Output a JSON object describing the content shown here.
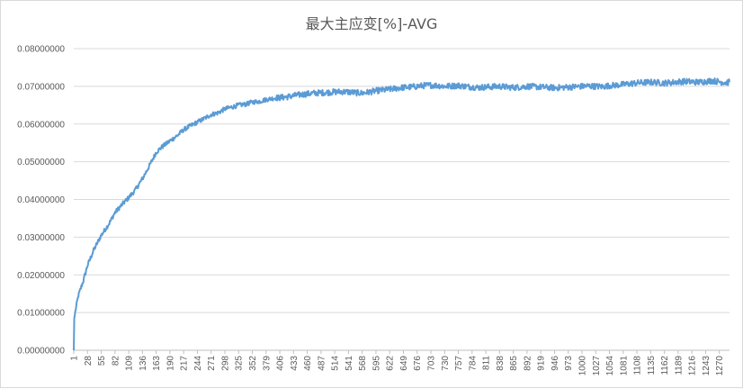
{
  "chart_data": {
    "type": "line",
    "title": "最大主应变[%]-AVG",
    "xlabel": "",
    "ylabel": "",
    "ylim": [
      0,
      0.08
    ],
    "grid": true,
    "legend": "none",
    "y_ticks": [
      "0.00000000",
      "0.01000000",
      "0.02000000",
      "0.03000000",
      "0.04000000",
      "0.05000000",
      "0.06000000",
      "0.07000000",
      "0.08000000"
    ],
    "x_ticks": [
      "1",
      "28",
      "55",
      "82",
      "109",
      "136",
      "163",
      "190",
      "217",
      "244",
      "271",
      "298",
      "325",
      "352",
      "379",
      "406",
      "433",
      "460",
      "487",
      "514",
      "541",
      "568",
      "595",
      "622",
      "649",
      "676",
      "703",
      "730",
      "757",
      "784",
      "811",
      "838",
      "865",
      "892",
      "919",
      "946",
      "973",
      "1000",
      "1027",
      "1054",
      "1081",
      "1108",
      "1135",
      "1162",
      "1189",
      "1216",
      "1243",
      "1270"
    ],
    "x_range": [
      1,
      1290
    ],
    "series": [
      {
        "color": "#5b9bd5",
        "x": [
          1,
          2,
          5,
          10,
          20,
          28,
          40,
          55,
          70,
          82,
          95,
          109,
          122,
          136,
          150,
          163,
          175,
          190,
          205,
          217,
          230,
          244,
          258,
          271,
          285,
          298,
          312,
          325,
          340,
          352,
          366,
          379,
          392,
          406,
          420,
          433,
          447,
          460,
          474,
          487,
          500,
          514,
          528,
          541,
          555,
          568,
          582,
          595,
          609,
          622,
          636,
          649,
          663,
          676,
          690,
          703,
          717,
          730,
          744,
          757,
          771,
          784,
          798,
          811,
          825,
          838,
          852,
          865,
          879,
          892,
          906,
          919,
          933,
          946,
          960,
          973,
          987,
          1000,
          1014,
          1027,
          1041,
          1054,
          1068,
          1081,
          1095,
          1108,
          1122,
          1135,
          1149,
          1162,
          1176,
          1189,
          1203,
          1216,
          1230,
          1243,
          1257,
          1270,
          1283,
          1290
        ],
        "values": [
          0.0,
          0.0085,
          0.011,
          0.0145,
          0.0185,
          0.0225,
          0.0265,
          0.0305,
          0.0335,
          0.0365,
          0.0385,
          0.0405,
          0.0425,
          0.0455,
          0.049,
          0.0525,
          0.054,
          0.0555,
          0.057,
          0.0585,
          0.0595,
          0.0605,
          0.0615,
          0.0625,
          0.063,
          0.064,
          0.0645,
          0.065,
          0.0653,
          0.0658,
          0.066,
          0.0665,
          0.0668,
          0.067,
          0.0672,
          0.0675,
          0.0678,
          0.068,
          0.0682,
          0.0683,
          0.0684,
          0.0685,
          0.0686,
          0.0685,
          0.0683,
          0.0682,
          0.0685,
          0.0688,
          0.069,
          0.0692,
          0.0695,
          0.0697,
          0.0698,
          0.07,
          0.0702,
          0.0703,
          0.0702,
          0.07,
          0.0701,
          0.0702,
          0.07,
          0.0698,
          0.0697,
          0.0698,
          0.0699,
          0.07,
          0.0698,
          0.0697,
          0.0698,
          0.07,
          0.0699,
          0.0698,
          0.0697,
          0.0696,
          0.0697,
          0.0698,
          0.0699,
          0.07,
          0.0701,
          0.07,
          0.0699,
          0.0702,
          0.0703,
          0.0705,
          0.0707,
          0.0709,
          0.071,
          0.0711,
          0.071,
          0.0709,
          0.071,
          0.0712,
          0.0713,
          0.0712,
          0.0711,
          0.0713,
          0.0715,
          0.0712,
          0.071,
          0.0711
        ]
      }
    ]
  }
}
